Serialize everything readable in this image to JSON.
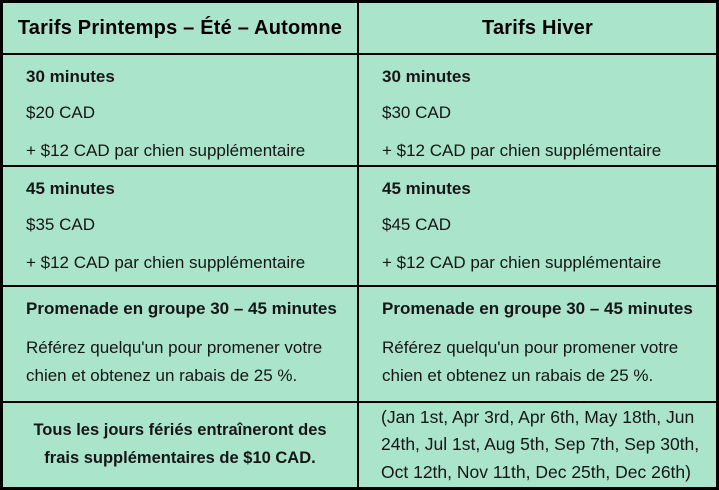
{
  "theme": {
    "background_color": "#a9e4cb",
    "border_color": "#000000",
    "text_color": "#161616"
  },
  "table": {
    "columns": [
      {
        "header": "Tarifs Printemps – Été – Automne"
      },
      {
        "header": "Tarifs Hiver"
      }
    ],
    "rows": [
      {
        "left": {
          "title": "30 minutes",
          "price": "$20 CAD",
          "extra": "+ $12 CAD par chien supplémentaire"
        },
        "right": {
          "title": "30 minutes",
          "price": "$30 CAD",
          "extra": "+ $12 CAD par chien supplémentaire"
        }
      },
      {
        "left": {
          "title": "45 minutes",
          "price": "$35 CAD",
          "extra": "+ $12 CAD par chien supplémentaire"
        },
        "right": {
          "title": "45 minutes",
          "price": "$45 CAD",
          "extra": "+ $12 CAD par chien supplémentaire"
        }
      },
      {
        "left": {
          "title": "Promenade en groupe 30 – 45 minutes",
          "body": "Référez quelqu'un pour promener votre chien et obtenez un rabais de 25 %."
        },
        "right": {
          "title": "Promenade en groupe 30 – 45 minutes",
          "body": "Référez quelqu'un pour promener votre chien et obtenez un rabais de 25 %."
        }
      },
      {
        "left": {
          "note": "Tous les jours fériés entraîneront des frais supplémentaires de $10 CAD."
        },
        "right": {
          "dates": "(Jan 1st, Apr 3rd, Apr 6th, May 18th, Jun 24th, Jul 1st, Aug 5th, Sep 7th, Sep 30th, Oct 12th, Nov 11th, Dec 25th, Dec 26th)"
        }
      }
    ]
  }
}
